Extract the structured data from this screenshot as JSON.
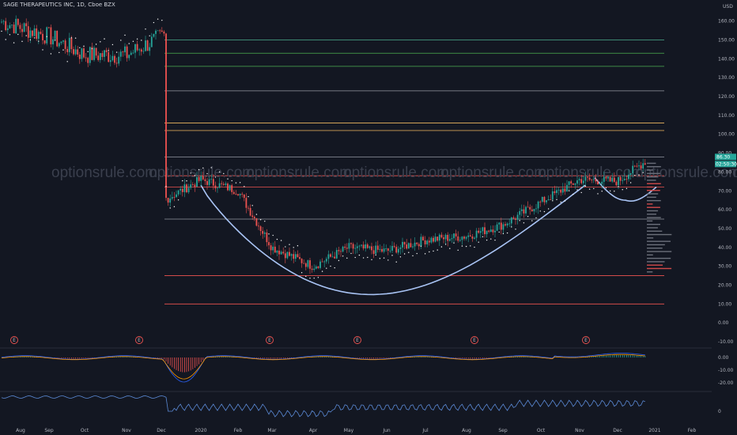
{
  "header": {
    "symbol": "SAGE THERAPEUTICS INC, 1D, Cboe BZX",
    "currency": "USD"
  },
  "watermark": "optionsrule.com",
  "colors": {
    "background": "#131722",
    "up": "#26a69a",
    "down": "#ef5350",
    "grid_text": "#b2b5be",
    "cup_curve": "#a9c4f5",
    "dots": "#ffffff",
    "line_series": "#5b8ad6"
  },
  "chart_data": [
    {
      "type": "candlestick",
      "name": "price",
      "x_labels": [
        "Aug",
        "Sep",
        "Oct",
        "Nov",
        "Dec",
        "2020",
        "Feb",
        "Mar",
        "Apr",
        "May",
        "Jun",
        "Jul",
        "Aug",
        "Sep",
        "Oct",
        "Nov",
        "Dec",
        "2021",
        "Feb"
      ],
      "y_ticks": [
        -10,
        0,
        10,
        20,
        30,
        40,
        50,
        60,
        70,
        80,
        90,
        100,
        110,
        120,
        130,
        140,
        150,
        160
      ],
      "ylim": [
        -10,
        167
      ],
      "price_tags": [
        "86.30",
        "02:50:30"
      ],
      "earnings_markers": [
        "E",
        "E",
        "E",
        "E",
        "E",
        "E"
      ],
      "closes_by_month": [
        {
          "month": "Aug 2019",
          "close": 160
        },
        {
          "month": "Sep 2019",
          "close": 152
        },
        {
          "month": "Oct 2019",
          "close": 142
        },
        {
          "month": "Nov 2019",
          "close": 142
        },
        {
          "month": "Dec 2019",
          "close": 152
        },
        {
          "month": "Dec 2019 gap",
          "close": 66
        },
        {
          "month": "Jan 2020",
          "close": 76
        },
        {
          "month": "Feb 2020",
          "close": 70
        },
        {
          "month": "Mar 2020",
          "close": 40
        },
        {
          "month": "Apr 2020",
          "close": 30
        },
        {
          "month": "May 2020",
          "close": 40
        },
        {
          "month": "Jun 2020",
          "close": 38
        },
        {
          "month": "Jul 2020",
          "close": 44
        },
        {
          "month": "Aug 2020",
          "close": 46
        },
        {
          "month": "Sep 2020",
          "close": 52
        },
        {
          "month": "Oct 2020",
          "close": 64
        },
        {
          "month": "Nov 2020",
          "close": 76
        },
        {
          "month": "Dec 2020",
          "close": 75
        },
        {
          "month": "Jan 2021",
          "close": 86.3
        }
      ],
      "horizontal_levels": [
        {
          "value": 150,
          "color": "#4caf8f"
        },
        {
          "value": 143,
          "color": "#4caf50"
        },
        {
          "value": 136,
          "color": "#4caf50"
        },
        {
          "value": 123,
          "color": "#9598a1"
        },
        {
          "value": 106,
          "color": "#f0b860"
        },
        {
          "value": 102,
          "color": "#f0b860"
        },
        {
          "value": 88,
          "color": "#9598a1"
        },
        {
          "value": 78,
          "color": "#ef5350"
        },
        {
          "value": 72,
          "color": "#ef5350"
        },
        {
          "value": 55,
          "color": "#9598a1"
        },
        {
          "value": 25,
          "color": "#ef5350"
        },
        {
          "value": 10,
          "color": "#ef5350"
        }
      ]
    },
    {
      "type": "bar",
      "name": "MACD",
      "y_ticks": [
        "0.00",
        "-10.00",
        "-20.00"
      ],
      "note_values": [
        0,
        -10,
        -20
      ]
    },
    {
      "type": "line",
      "name": "oscillator",
      "y_ticks": [
        "0"
      ]
    }
  ]
}
